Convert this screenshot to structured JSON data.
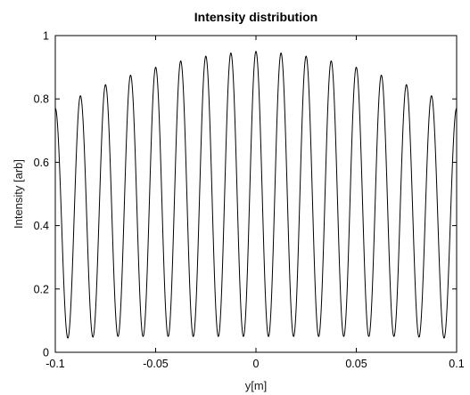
{
  "chart_data": {
    "type": "line",
    "title": "Intensity distribution",
    "xlabel": "y[m]",
    "ylabel": "Intensity [arb]",
    "xlim": [
      -0.1,
      0.1
    ],
    "ylim": [
      0,
      1
    ],
    "xticks": [
      -0.1,
      -0.05,
      0,
      0.05,
      0.1
    ],
    "xtick_labels": [
      "-0.1",
      "-0.05",
      "0",
      "0.05",
      "0.1"
    ],
    "yticks": [
      0,
      0.2,
      0.4,
      0.6,
      0.8,
      1
    ],
    "ytick_labels": [
      "0",
      "0.2",
      "0.4",
      "0.6",
      "0.8",
      "1"
    ],
    "grid": false,
    "legend": "none",
    "line_color": "#000000",
    "series": [
      {
        "fringe_period": 0.0125,
        "peaks": {
          "x": [
            -0.1,
            -0.0875,
            -0.075,
            -0.0625,
            -0.05,
            -0.0375,
            -0.025,
            -0.0125,
            0,
            0.0125,
            0.025,
            0.0375,
            0.05,
            0.0625,
            0.075,
            0.0875,
            0.1
          ],
          "y": [
            0.77,
            0.81,
            0.845,
            0.875,
            0.9,
            0.92,
            0.935,
            0.945,
            0.95,
            0.945,
            0.935,
            0.92,
            0.9,
            0.875,
            0.845,
            0.81,
            0.77
          ]
        },
        "minima": {
          "x": [
            -0.09375,
            -0.08125,
            -0.06875,
            -0.05625,
            -0.04375,
            -0.03125,
            -0.01875,
            -0.00625,
            0.00625,
            0.01875,
            0.03125,
            0.04375,
            0.05625,
            0.06875,
            0.08125,
            0.09375
          ],
          "y": [
            0.045,
            0.048,
            0.05,
            0.05,
            0.05,
            0.05,
            0.05,
            0.05,
            0.05,
            0.05,
            0.05,
            0.05,
            0.05,
            0.05,
            0.048,
            0.045
          ]
        }
      }
    ]
  }
}
